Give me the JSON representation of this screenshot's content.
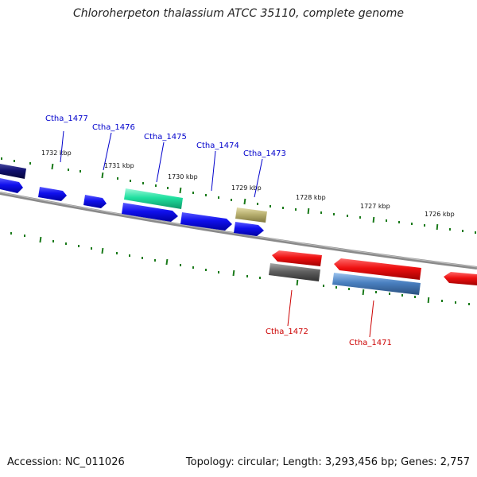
{
  "title": "Chloroherpeton thalassium ATCC 35110, complete genome",
  "footer": {
    "accession": "Accession: NC_011026",
    "summary": "Topology: circular; Length: 3,293,456 bp; Genes: 2,757"
  },
  "scale_labels": [
    "1732 kbp",
    "1731 kbp",
    "1730 kbp",
    "1729 kbp",
    "1728 kbp",
    "1727 kbp",
    "1726 kbp"
  ],
  "genes_top": [
    "Ctha_1477",
    "Ctha_1476",
    "Ctha_1475",
    "Ctha_1474",
    "Ctha_1473"
  ],
  "genes_bottom": [
    "Ctha_1472",
    "Ctha_1471"
  ],
  "colors": {
    "blue_gene": "#1010ee",
    "navy_gene": "#10106e",
    "teal_gene": "#20e0a0",
    "khaki_gene": "#b8b070",
    "red_gene": "#ee1010",
    "gray_gene": "#606060",
    "steel_gene": "#4a80c0",
    "top_label": "#0000cc",
    "bottom_label": "#cc0000",
    "tick": "#1a7a1a",
    "backbone": "#888888"
  }
}
